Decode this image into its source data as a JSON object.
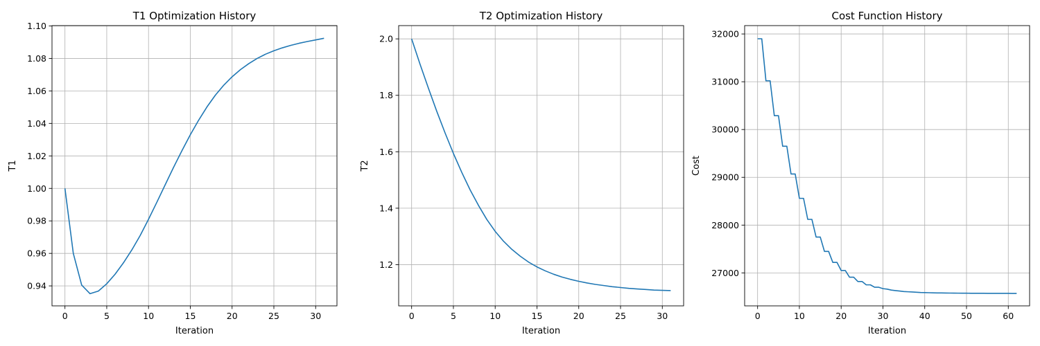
{
  "chart_data": [
    {
      "type": "line",
      "title": "T1 Optimization History",
      "xlabel": "Iteration",
      "ylabel": "T1",
      "xlim": [
        -1.55,
        32.55
      ],
      "ylim": [
        0.9277,
        1.1002
      ],
      "xticks": [
        0,
        5,
        10,
        15,
        20,
        25,
        30
      ],
      "xtick_labels": [
        "0",
        "5",
        "10",
        "15",
        "20",
        "25",
        "30"
      ],
      "yticks": [
        0.94,
        0.96,
        0.98,
        1.0,
        1.02,
        1.04,
        1.06,
        1.08,
        1.1
      ],
      "ytick_labels": [
        "0.94",
        "0.96",
        "0.98",
        "1.00",
        "1.02",
        "1.04",
        "1.06",
        "1.08",
        "1.10"
      ],
      "grid": true,
      "line_color": "#1f77b4",
      "x": [
        0,
        1,
        2,
        3,
        4,
        5,
        6,
        7,
        8,
        9,
        10,
        11,
        12,
        13,
        14,
        15,
        16,
        17,
        18,
        19,
        20,
        21,
        22,
        23,
        24,
        25,
        26,
        27,
        28,
        29,
        30,
        31
      ],
      "y": [
        1.0,
        0.96,
        0.9405,
        0.9352,
        0.9368,
        0.9413,
        0.9472,
        0.9542,
        0.9621,
        0.971,
        0.981,
        0.9915,
        1.0023,
        1.013,
        1.0232,
        1.033,
        1.042,
        1.0502,
        1.0574,
        1.0635,
        1.0687,
        1.0731,
        1.0768,
        1.08,
        1.0826,
        1.0847,
        1.0865,
        1.088,
        1.0893,
        1.0904,
        1.0914,
        1.0924
      ]
    },
    {
      "type": "line",
      "title": "T2 Optimization History",
      "xlabel": "Iteration",
      "ylabel": "T2",
      "xlim": [
        -1.55,
        32.55
      ],
      "ylim": [
        1.054,
        2.047
      ],
      "xticks": [
        0,
        5,
        10,
        15,
        20,
        25,
        30
      ],
      "xtick_labels": [
        "0",
        "5",
        "10",
        "15",
        "20",
        "25",
        "30"
      ],
      "yticks": [
        1.2,
        1.4,
        1.6,
        1.8,
        2.0
      ],
      "ytick_labels": [
        "1.2",
        "1.4",
        "1.6",
        "1.8",
        "2.0"
      ],
      "grid": true,
      "line_color": "#1f77b4",
      "x": [
        0,
        1,
        2,
        3,
        4,
        5,
        6,
        7,
        8,
        9,
        10,
        11,
        12,
        13,
        14,
        15,
        16,
        17,
        18,
        19,
        20,
        21,
        22,
        23,
        24,
        25,
        26,
        27,
        28,
        29,
        30,
        31
      ],
      "y": [
        2.0,
        1.911,
        1.826,
        1.744,
        1.667,
        1.594,
        1.527,
        1.465,
        1.41,
        1.36,
        1.318,
        1.283,
        1.254,
        1.23,
        1.209,
        1.192,
        1.178,
        1.166,
        1.156,
        1.148,
        1.141,
        1.135,
        1.13,
        1.126,
        1.122,
        1.119,
        1.116,
        1.114,
        1.112,
        1.11,
        1.109,
        1.108
      ]
    },
    {
      "type": "line",
      "title": "Cost Function History",
      "xlabel": "Iteration",
      "ylabel": "Cost",
      "xlim": [
        -3.1,
        65.1
      ],
      "ylim": [
        26310,
        32175
      ],
      "xticks": [
        0,
        10,
        20,
        30,
        40,
        50,
        60
      ],
      "xtick_labels": [
        "0",
        "10",
        "20",
        "30",
        "40",
        "50",
        "60"
      ],
      "yticks": [
        27000,
        28000,
        29000,
        30000,
        31000,
        32000
      ],
      "ytick_labels": [
        "27000",
        "28000",
        "29000",
        "30000",
        "31000",
        "32000"
      ],
      "grid": true,
      "line_color": "#1f77b4",
      "x": [
        0,
        1,
        2,
        3,
        4,
        5,
        6,
        7,
        8,
        9,
        10,
        11,
        12,
        13,
        14,
        15,
        16,
        17,
        18,
        19,
        20,
        21,
        22,
        23,
        24,
        25,
        26,
        27,
        28,
        29,
        30,
        31,
        32,
        33,
        34,
        35,
        36,
        37,
        38,
        39,
        40,
        41,
        42,
        43,
        44,
        45,
        46,
        47,
        48,
        49,
        50,
        51,
        52,
        53,
        54,
        55,
        56,
        57,
        58,
        59,
        60,
        61,
        62
      ],
      "y": [
        31900,
        31900,
        31020,
        31020,
        30290,
        30290,
        29650,
        29650,
        29070,
        29070,
        28560,
        28560,
        28120,
        28120,
        27750,
        27750,
        27450,
        27450,
        27220,
        27220,
        27050,
        27050,
        26910,
        26910,
        26820,
        26820,
        26750,
        26750,
        26700,
        26700,
        26670,
        26660,
        26640,
        26630,
        26620,
        26610,
        26605,
        26600,
        26595,
        26590,
        26588,
        26585,
        26583,
        26581,
        26580,
        26579,
        26578,
        26577,
        26576,
        26575,
        26575,
        26574,
        26574,
        26573,
        26573,
        26572,
        26572,
        26572,
        26571,
        26571,
        26571,
        26570,
        26570
      ]
    }
  ]
}
